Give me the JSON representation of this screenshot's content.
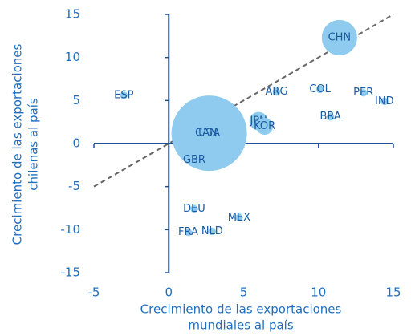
{
  "chart_data": {
    "type": "scatter",
    "x_label": [
      "Crecimiento de las exportaciones",
      "mundiales al país"
    ],
    "y_label": [
      "Crecimiento de las exportaciones",
      "chilenas al país"
    ],
    "labels": [
      "CHN",
      "USA",
      "ESP",
      "ARG",
      "COL",
      "PER",
      "IND",
      "BRA",
      "JPN",
      "KOR",
      "CAN",
      "GBR",
      "DEU",
      "MEX",
      "FRA",
      "NLD"
    ],
    "x": [
      11.4,
      2.7,
      -3.0,
      7.2,
      10.1,
      13.0,
      14.4,
      10.8,
      6.0,
      6.4,
      2.5,
      1.7,
      1.7,
      4.7,
      1.3,
      2.9
    ],
    "values": [
      12.3,
      1.2,
      5.6,
      6.0,
      6.3,
      5.9,
      4.9,
      3.1,
      2.6,
      2.0,
      1.2,
      -1.9,
      -7.6,
      -8.6,
      -10.3,
      -10.2
    ],
    "sizes": [
      22,
      100,
      1,
      1,
      1,
      1,
      1,
      1,
      6,
      5,
      1,
      1,
      1,
      1,
      1,
      1
    ],
    "color": "#8ecbee",
    "diagonal": true,
    "xlim": [
      -5,
      15
    ],
    "xticks": [
      -5,
      0,
      5,
      10,
      15
    ],
    "ylim": [
      -15,
      15
    ],
    "yticks": [
      -15,
      -10,
      -5,
      0,
      5,
      10,
      15
    ]
  }
}
